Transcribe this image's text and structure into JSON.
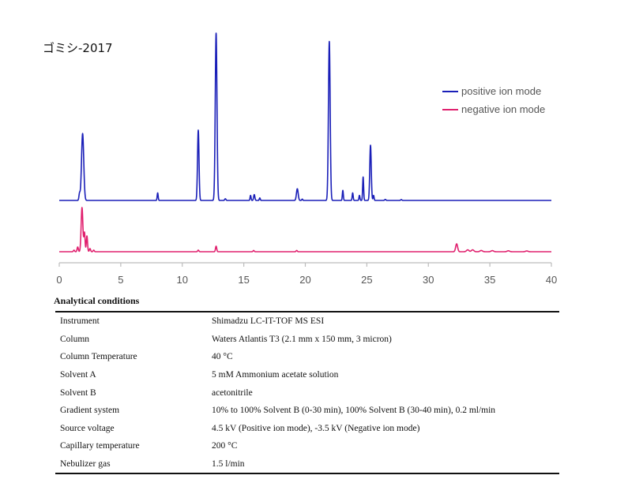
{
  "chart_data": {
    "type": "line",
    "title": "ゴミシ-2017",
    "xlabel": "",
    "ylabel": "",
    "xlim": [
      0,
      40
    ],
    "x_ticks": [
      "0",
      "5",
      "10",
      "15",
      "20",
      "25",
      "30",
      "35",
      "40"
    ],
    "grid": false,
    "legend_position": "top-right",
    "series": [
      {
        "name": "positive ion mode",
        "color": "#1a1fb8",
        "baseline": 0,
        "peaks": [
          {
            "t": 1.65,
            "h": 0.04,
            "w": 0.05
          },
          {
            "t": 1.9,
            "h": 0.4,
            "w": 0.09
          },
          {
            "t": 8.0,
            "h": 0.045,
            "w": 0.04
          },
          {
            "t": 11.3,
            "h": 0.42,
            "w": 0.06
          },
          {
            "t": 12.75,
            "h": 1.0,
            "w": 0.07
          },
          {
            "t": 13.5,
            "h": 0.01,
            "w": 0.05
          },
          {
            "t": 15.55,
            "h": 0.03,
            "w": 0.04
          },
          {
            "t": 15.85,
            "h": 0.035,
            "w": 0.05
          },
          {
            "t": 16.3,
            "h": 0.015,
            "w": 0.04
          },
          {
            "t": 19.35,
            "h": 0.07,
            "w": 0.07
          },
          {
            "t": 19.75,
            "h": 0.008,
            "w": 0.04
          },
          {
            "t": 21.95,
            "h": 0.95,
            "w": 0.07
          },
          {
            "t": 23.05,
            "h": 0.06,
            "w": 0.04
          },
          {
            "t": 23.85,
            "h": 0.045,
            "w": 0.04
          },
          {
            "t": 24.4,
            "h": 0.03,
            "w": 0.04
          },
          {
            "t": 24.7,
            "h": 0.14,
            "w": 0.04
          },
          {
            "t": 25.3,
            "h": 0.33,
            "w": 0.06
          },
          {
            "t": 25.55,
            "h": 0.03,
            "w": 0.04
          },
          {
            "t": 26.5,
            "h": 0.006,
            "w": 0.05
          },
          {
            "t": 27.8,
            "h": 0.005,
            "w": 0.05
          }
        ]
      },
      {
        "name": "negative ion mode",
        "color": "#e0206e",
        "baseline": 0,
        "peaks": [
          {
            "t": 1.2,
            "h": 0.01,
            "w": 0.05
          },
          {
            "t": 1.5,
            "h": 0.03,
            "w": 0.05
          },
          {
            "t": 1.85,
            "h": 0.28,
            "w": 0.07
          },
          {
            "t": 2.05,
            "h": 0.12,
            "w": 0.05
          },
          {
            "t": 2.25,
            "h": 0.1,
            "w": 0.05
          },
          {
            "t": 2.5,
            "h": 0.02,
            "w": 0.05
          },
          {
            "t": 2.8,
            "h": 0.01,
            "w": 0.05
          },
          {
            "t": 11.3,
            "h": 0.01,
            "w": 0.05
          },
          {
            "t": 12.75,
            "h": 0.035,
            "w": 0.05
          },
          {
            "t": 15.8,
            "h": 0.008,
            "w": 0.05
          },
          {
            "t": 19.3,
            "h": 0.008,
            "w": 0.05
          },
          {
            "t": 32.3,
            "h": 0.05,
            "w": 0.08
          },
          {
            "t": 33.2,
            "h": 0.012,
            "w": 0.1
          },
          {
            "t": 33.6,
            "h": 0.012,
            "w": 0.1
          },
          {
            "t": 34.3,
            "h": 0.008,
            "w": 0.1
          },
          {
            "t": 35.2,
            "h": 0.007,
            "w": 0.1
          },
          {
            "t": 36.5,
            "h": 0.006,
            "w": 0.1
          },
          {
            "t": 38.0,
            "h": 0.005,
            "w": 0.1
          }
        ]
      }
    ]
  },
  "conditions": {
    "heading": "Analytical conditions",
    "rows": [
      {
        "key": "Instrument",
        "value": "Shimadzu LC-IT-TOF MS ESI"
      },
      {
        "key": "Column",
        "value": "Waters Atlantis T3 (2.1 mm x 150 mm, 3 micron)"
      },
      {
        "key": "Column Temperature",
        "value": "40 °C"
      },
      {
        "key": "Solvent A",
        "value": "5 mM Ammonium acetate solution"
      },
      {
        "key": "Solvent B",
        "value": "acetonitrile"
      },
      {
        "key": "Gradient system",
        "value": "10% to 100% Solvent B (0-30 min), 100% Solvent B (30-40 min), 0.2 ml/min"
      },
      {
        "key": "Source voltage",
        "value": "4.5 kV (Positive ion mode), -3.5 kV (Negative ion mode)"
      },
      {
        "key": "Capillary temperature",
        "value": "200 °C"
      },
      {
        "key": "Nebulizer gas",
        "value": "1.5 l/min"
      }
    ]
  }
}
